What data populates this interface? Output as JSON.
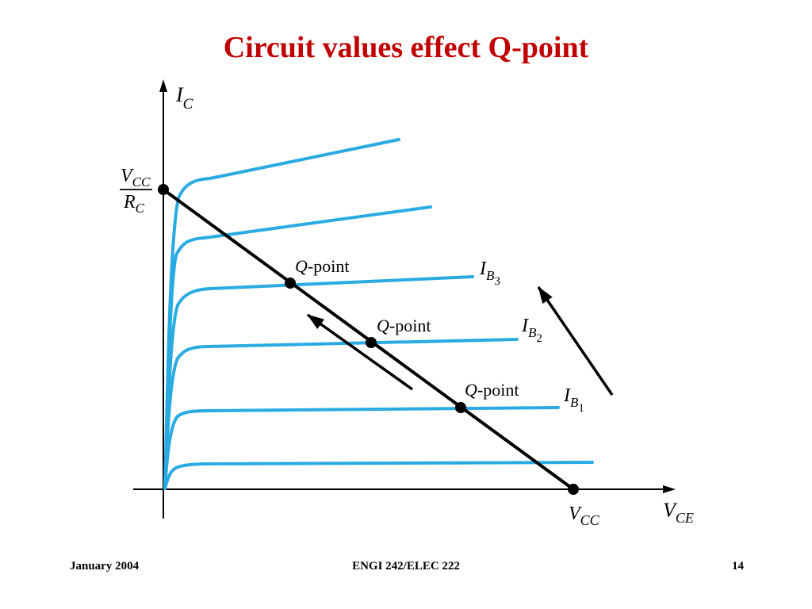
{
  "slide": {
    "title": "Circuit values effect Q-point",
    "footer": {
      "date": "January 2004",
      "course": "ENGI 242/ELEC 222",
      "page": "14"
    }
  },
  "colors": {
    "title": "#c00000",
    "curve": "#29abe2",
    "load_line": "#000000"
  },
  "diagram": {
    "y_axis_label": {
      "main": "I",
      "sub": "C"
    },
    "x_axis_label": {
      "main": "V",
      "sub": "CE"
    },
    "vcc_over_rc": {
      "num_main": "V",
      "num_sub": "CC",
      "den_main": "R",
      "den_sub": "C"
    },
    "vcc_label": {
      "main": "V",
      "sub": "CC"
    },
    "q_point_labels": [
      {
        "q": "Q",
        "rest": "-point"
      },
      {
        "q": "Q",
        "rest": "-point"
      },
      {
        "q": "Q",
        "rest": "-point"
      }
    ],
    "base_current_labels": [
      {
        "main": "I",
        "sub": "B",
        "subsub": "3"
      },
      {
        "main": "I",
        "sub": "B",
        "subsub": "2"
      },
      {
        "main": "I",
        "sub": "B",
        "subsub": "1"
      }
    ]
  }
}
